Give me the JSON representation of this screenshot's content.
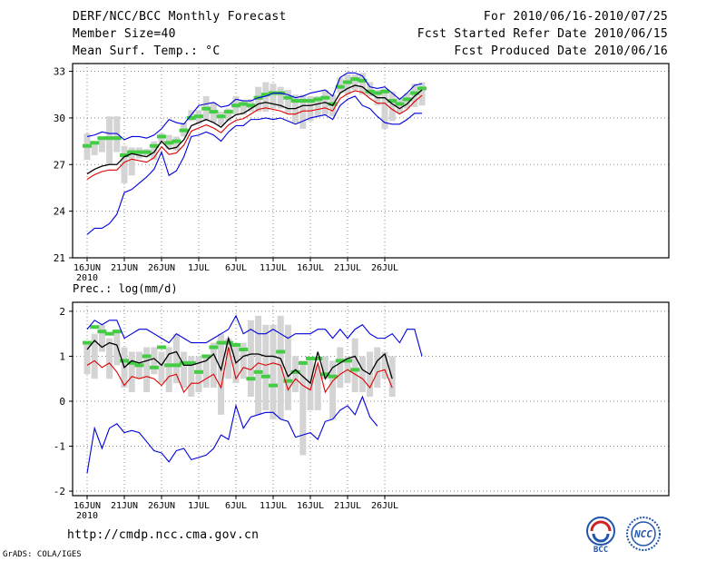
{
  "header": {
    "title": "DERF/NCC/BCC Monthly Forecast",
    "member_size": "Member Size=40",
    "variable": "Mean Surf. Temp.: °C",
    "period": "For 2010/06/16-2010/07/25",
    "started": "Fcst Started Refer Date 2010/06/15",
    "produced": "Fcst Produced Date 2010/06/16"
  },
  "footer": {
    "url": "http://cmdp.ncc.cma.gov.cn",
    "grads": "GrADS: COLA/IGES",
    "logo_bcc": "BCC",
    "logo_ncc": "NCC"
  },
  "colors": {
    "upper": "#0000dd",
    "lower": "#dd0000",
    "mean": "#000000",
    "median": "#44cc44",
    "box": "#d4d4d4",
    "grid": "#888888"
  },
  "chart_data": [
    {
      "type": "line",
      "title": "Mean Surf. Temp.: °C",
      "ylim": [
        21,
        33.5
      ],
      "yticks": [
        21,
        24,
        27,
        30,
        33
      ],
      "x_labels": [
        "16JUN",
        "21JUN",
        "26JUN",
        "1JUL",
        "6JUL",
        "11JUL",
        "16JUL",
        "21JUL",
        "26JUL"
      ],
      "x_sublabel": "2010",
      "series": [
        {
          "name": "max",
          "values": [
            28.8,
            28.9,
            29.1,
            29.0,
            29.0,
            28.6,
            28.8,
            28.8,
            28.7,
            28.9,
            29.3,
            29.9,
            29.7,
            29.6,
            30.2,
            30.8,
            30.9,
            31.0,
            30.7,
            30.8,
            31.2,
            31.1,
            31.1,
            31.3,
            31.4,
            31.6,
            31.6,
            31.5,
            31.3,
            31.4,
            31.6,
            31.7,
            31.8,
            31.4,
            32.6,
            32.9,
            32.9,
            32.7,
            32.0,
            31.9,
            32.0,
            31.6,
            31.2,
            31.6,
            32.1,
            32.2
          ]
        },
        {
          "name": "mean",
          "values": [
            26.4,
            26.7,
            26.9,
            27.0,
            27.0,
            27.5,
            27.7,
            27.6,
            27.5,
            27.8,
            28.5,
            28.0,
            28.1,
            28.6,
            29.5,
            29.7,
            29.9,
            29.7,
            29.4,
            29.9,
            30.2,
            30.3,
            30.6,
            30.9,
            31.0,
            30.9,
            30.8,
            30.6,
            30.6,
            30.8,
            30.8,
            30.9,
            31.0,
            30.8,
            31.6,
            31.9,
            32.1,
            32.0,
            31.6,
            31.3,
            31.3,
            30.9,
            30.6,
            30.9,
            31.4,
            31.8
          ]
        },
        {
          "name": "min",
          "values": [
            22.5,
            22.9,
            22.9,
            23.2,
            23.8,
            25.2,
            25.4,
            25.8,
            26.2,
            26.7,
            27.8,
            26.3,
            26.6,
            27.5,
            28.8,
            28.9,
            29.1,
            28.9,
            28.5,
            29.1,
            29.5,
            29.5,
            29.9,
            29.9,
            30.0,
            29.9,
            30.0,
            29.8,
            29.6,
            29.8,
            30.0,
            30.1,
            30.2,
            29.9,
            30.8,
            31.2,
            31.4,
            30.8,
            30.6,
            30.1,
            29.7,
            29.6,
            29.6,
            29.9,
            30.3,
            30.3
          ]
        },
        {
          "name": "median",
          "values": [
            28.2,
            28.4,
            28.7,
            28.7,
            28.7,
            27.6,
            27.8,
            27.8,
            27.8,
            28.2,
            28.8,
            28.4,
            28.5,
            29.2,
            30.0,
            30.1,
            30.6,
            30.4,
            30.1,
            30.4,
            30.8,
            30.9,
            30.8,
            31.3,
            31.5,
            31.6,
            31.6,
            31.3,
            31.1,
            31.1,
            31.1,
            31.2,
            31.3,
            30.9,
            32.0,
            32.3,
            32.5,
            32.4,
            31.7,
            31.6,
            31.7,
            31.1,
            30.9,
            31.2,
            31.6,
            31.9
          ]
        },
        {
          "name": "box_high",
          "values": [
            29.0,
            28.5,
            28.7,
            30.1,
            30.1,
            28.2,
            28.1,
            28.1,
            28.0,
            28.5,
            29.0,
            28.9,
            28.8,
            29.7,
            30.5,
            30.5,
            31.4,
            31.0,
            30.4,
            30.6,
            31.4,
            31.1,
            31.2,
            32.0,
            32.3,
            32.2,
            32.0,
            31.8,
            31.5,
            31.5,
            31.4,
            31.4,
            31.8,
            31.5,
            32.6,
            32.8,
            32.8,
            32.9,
            32.3,
            31.8,
            31.9,
            31.7,
            31.3,
            31.6,
            32.2,
            32.3
          ]
        },
        {
          "name": "box_low",
          "values": [
            27.3,
            27.6,
            27.8,
            27.0,
            27.8,
            25.8,
            26.3,
            27.4,
            27.5,
            27.3,
            28.4,
            28.0,
            27.9,
            28.8,
            29.8,
            29.6,
            29.8,
            29.7,
            29.5,
            29.8,
            30.2,
            30.2,
            30.4,
            30.4,
            30.4,
            30.6,
            30.6,
            30.3,
            29.7,
            29.3,
            29.8,
            30.1,
            30.2,
            30.1,
            31.6,
            31.5,
            31.8,
            31.5,
            31.4,
            30.8,
            29.3,
            29.8,
            30.3,
            30.6,
            30.7,
            30.8
          ]
        }
      ]
    },
    {
      "type": "line",
      "title": "Prec.: log(mm/d)",
      "ylim": [
        -2.1,
        2.2
      ],
      "yticks": [
        -2,
        -1,
        0,
        1,
        2
      ],
      "x_labels": [
        "16JUN",
        "21JUN",
        "26JUN",
        "1JUL",
        "6JUL",
        "11JUL",
        "16JUL",
        "21JUL",
        "26JUL"
      ],
      "x_sublabel": "2010",
      "series": [
        {
          "name": "max",
          "values": [
            1.6,
            1.8,
            1.7,
            1.8,
            1.8,
            1.4,
            1.5,
            1.6,
            1.6,
            1.5,
            1.4,
            1.3,
            1.5,
            1.4,
            1.3,
            1.3,
            1.3,
            1.4,
            1.5,
            1.6,
            1.9,
            1.5,
            1.6,
            1.5,
            1.5,
            1.6,
            1.5,
            1.4,
            1.5,
            1.5,
            1.5,
            1.6,
            1.6,
            1.4,
            1.6,
            1.4,
            1.6,
            1.7,
            1.5,
            1.4,
            1.4,
            1.5,
            1.3,
            1.6,
            1.6,
            1.0
          ]
        },
        {
          "name": "mean",
          "values": [
            1.15,
            1.35,
            1.2,
            1.3,
            1.25,
            0.75,
            0.9,
            0.85,
            0.9,
            0.95,
            0.8,
            1.05,
            1.1,
            0.8,
            0.8,
            0.85,
            0.9,
            1.05,
            0.7,
            1.4,
            0.85,
            1.0,
            1.05,
            1.05,
            1.0,
            1.0,
            0.95,
            0.55,
            0.7,
            0.55,
            0.4,
            1.1,
            0.5,
            0.75,
            0.85,
            0.95,
            1.0,
            0.7,
            0.6,
            0.9,
            1.05,
            0.5
          ]
        },
        {
          "name": "min",
          "values": [
            -1.6,
            -0.6,
            -1.05,
            -0.6,
            -0.5,
            -0.7,
            -0.65,
            -0.7,
            -0.9,
            -1.1,
            -1.15,
            -1.35,
            -1.1,
            -1.05,
            -1.3,
            -1.25,
            -1.2,
            -1.05,
            -0.75,
            -0.85,
            -0.1,
            -0.6,
            -0.35,
            -0.3,
            -0.25,
            -0.25,
            -0.4,
            -0.45,
            -0.8,
            -0.75,
            -0.7,
            -0.85,
            -0.45,
            -0.4,
            -0.2,
            -0.1,
            -0.3,
            0.1,
            -0.35,
            -0.55
          ]
        },
        {
          "name": "lower",
          "values": [
            0.8,
            0.9,
            0.75,
            0.85,
            0.65,
            0.35,
            0.55,
            0.5,
            0.55,
            0.5,
            0.35,
            0.55,
            0.6,
            0.2,
            0.4,
            0.4,
            0.5,
            0.6,
            0.3,
            1.2,
            0.5,
            0.75,
            0.7,
            0.85,
            0.8,
            0.85,
            0.8,
            0.25,
            0.5,
            0.35,
            0.25,
            0.85,
            0.2,
            0.45,
            0.6,
            0.7,
            0.6,
            0.5,
            0.3,
            0.65,
            0.7,
            0.3
          ]
        },
        {
          "name": "median",
          "values": [
            1.3,
            1.65,
            1.55,
            1.5,
            1.55,
            0.9,
            0.85,
            0.8,
            1.0,
            0.75,
            1.2,
            0.8,
            0.8,
            0.85,
            0.85,
            0.65,
            1.0,
            1.2,
            1.3,
            1.3,
            1.25,
            1.15,
            0.5,
            0.65,
            0.55,
            0.35,
            1.1,
            0.45,
            0.65,
            0.85,
            0.95,
            0.95,
            0.6,
            0.55,
            0.9,
            0.9,
            0.7
          ]
        },
        {
          "name": "box_high",
          "values": [
            1.3,
            1.5,
            1.7,
            1.4,
            1.6,
            1.2,
            1.1,
            1.1,
            1.2,
            1.2,
            1.1,
            1.2,
            1.5,
            1.1,
            1.0,
            1.0,
            1.0,
            1.3,
            1.5,
            1.4,
            1.3,
            1.3,
            1.8,
            1.9,
            1.7,
            1.7,
            1.9,
            1.7,
            1.0,
            0.9,
            0.9,
            0.8,
            1.0,
            0.9,
            1.2,
            1.0,
            1.4,
            1.0,
            1.1,
            1.2,
            1.1,
            1.0
          ]
        },
        {
          "name": "box_low",
          "values": [
            0.6,
            0.5,
            1.1,
            0.5,
            0.8,
            0.3,
            0.2,
            0.5,
            0.2,
            0.6,
            0.4,
            0.2,
            0.4,
            0.3,
            0.1,
            0.2,
            0.3,
            0.3,
            -0.3,
            0.5,
            0.4,
            0.5,
            0.1,
            -0.3,
            -0.2,
            -0.4,
            -0.4,
            -0.2,
            0.2,
            -1.2,
            -0.2,
            -0.2,
            0.5,
            -0.4,
            0.3,
            0.4,
            0.2,
            0.2,
            0.1,
            0.3,
            0.5,
            0.1
          ]
        }
      ]
    }
  ]
}
